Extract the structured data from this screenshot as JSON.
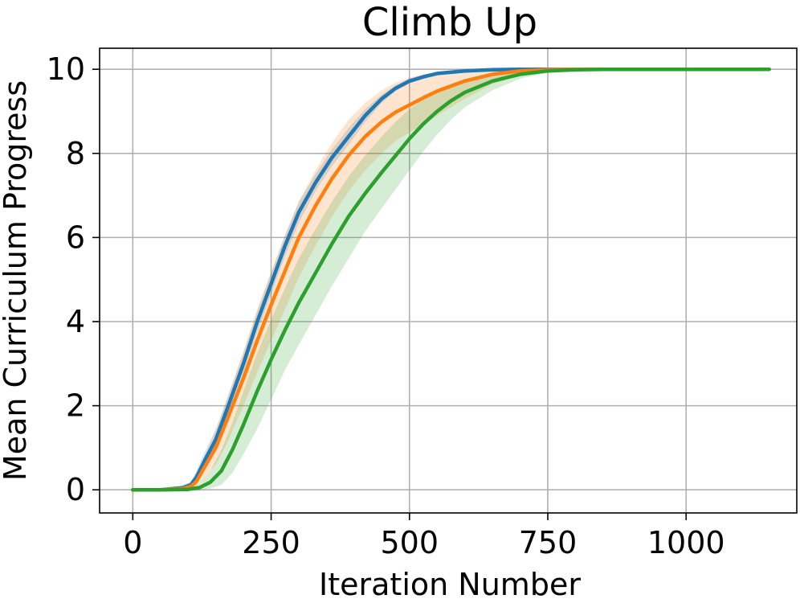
{
  "chart_data": {
    "type": "line",
    "title": "Climb Up",
    "xlabel": "Iteration Number",
    "ylabel": "Mean Curriculum Progress",
    "xlim": [
      -60,
      1200
    ],
    "ylim": [
      -0.55,
      10.5
    ],
    "xticks": [
      0,
      250,
      500,
      750,
      1000
    ],
    "yticks": [
      0,
      2,
      4,
      6,
      8,
      10
    ],
    "grid": true,
    "series": [
      {
        "color": "#1f77b4",
        "x": [
          0,
          50,
          90,
          105,
          115,
          130,
          150,
          170,
          200,
          225,
          250,
          275,
          300,
          330,
          360,
          390,
          420,
          450,
          475,
          500,
          525,
          550,
          600,
          650,
          700,
          750,
          800,
          850,
          900,
          1000,
          1150
        ],
        "y": [
          0,
          0,
          0.05,
          0.12,
          0.3,
          0.7,
          1.2,
          1.9,
          3.0,
          4.0,
          4.9,
          5.8,
          6.6,
          7.3,
          7.9,
          8.4,
          8.9,
          9.3,
          9.55,
          9.72,
          9.82,
          9.9,
          9.96,
          9.99,
          10,
          10,
          10,
          10,
          10,
          10,
          10
        ],
        "upper": [
          0,
          0,
          0.1,
          0.2,
          0.45,
          0.9,
          1.45,
          2.15,
          3.25,
          4.25,
          5.15,
          6.05,
          6.85,
          7.5,
          8.1,
          8.6,
          9.05,
          9.4,
          9.62,
          9.78,
          9.87,
          9.93,
          9.98,
          10,
          10,
          10,
          10,
          10,
          10,
          10,
          10
        ],
        "lower": [
          0,
          0,
          0.02,
          0.06,
          0.18,
          0.5,
          0.95,
          1.65,
          2.75,
          3.75,
          4.65,
          5.55,
          6.35,
          7.1,
          7.7,
          8.2,
          8.75,
          9.2,
          9.48,
          9.66,
          9.77,
          9.86,
          9.94,
          9.98,
          10,
          10,
          10,
          10,
          10,
          10,
          10
        ],
        "band_color": "#1f77b4"
      },
      {
        "color": "#ff7f0e",
        "x": [
          0,
          50,
          90,
          105,
          115,
          130,
          150,
          170,
          200,
          225,
          250,
          275,
          300,
          330,
          360,
          390,
          420,
          450,
          475,
          500,
          525,
          550,
          600,
          650,
          700,
          750,
          800,
          850,
          900,
          1000,
          1150
        ],
        "y": [
          0,
          0,
          0.03,
          0.08,
          0.2,
          0.55,
          1.0,
          1.65,
          2.65,
          3.55,
          4.4,
          5.2,
          6.0,
          6.75,
          7.4,
          7.95,
          8.4,
          8.75,
          8.98,
          9.15,
          9.32,
          9.48,
          9.72,
          9.88,
          9.96,
          9.99,
          10,
          10,
          10,
          10,
          10
        ],
        "upper": [
          0,
          0,
          0.08,
          0.15,
          0.35,
          0.8,
          1.4,
          2.15,
          3.3,
          4.3,
          5.2,
          6.05,
          6.85,
          7.6,
          8.25,
          8.8,
          9.2,
          9.5,
          9.68,
          9.8,
          9.88,
          9.93,
          9.98,
          10,
          10,
          10,
          10,
          10,
          10,
          10,
          10
        ],
        "lower": [
          0,
          0,
          0.01,
          0.03,
          0.08,
          0.3,
          0.6,
          1.1,
          2.0,
          2.8,
          3.55,
          4.3,
          5.05,
          5.8,
          6.5,
          7.1,
          7.6,
          8.0,
          8.3,
          8.5,
          8.7,
          8.9,
          9.3,
          9.65,
          9.85,
          9.95,
          10,
          10,
          10,
          10,
          10
        ],
        "band_color": "#ff7f0e"
      },
      {
        "color": "#2ca02c",
        "x": [
          0,
          50,
          100,
          120,
          140,
          160,
          180,
          200,
          225,
          250,
          275,
          300,
          330,
          360,
          390,
          420,
          450,
          475,
          500,
          525,
          550,
          575,
          600,
          650,
          700,
          750,
          800,
          850,
          900,
          1000,
          1150
        ],
        "y": [
          0,
          0,
          0.01,
          0.05,
          0.18,
          0.45,
          0.95,
          1.55,
          2.35,
          3.1,
          3.8,
          4.45,
          5.15,
          5.85,
          6.5,
          7.05,
          7.55,
          7.95,
          8.35,
          8.7,
          9.0,
          9.25,
          9.45,
          9.72,
          9.88,
          9.96,
          9.99,
          10,
          10,
          10,
          10
        ],
        "upper": [
          0,
          0,
          0.03,
          0.15,
          0.45,
          0.95,
          1.6,
          2.35,
          3.25,
          4.05,
          4.8,
          5.5,
          6.2,
          6.85,
          7.45,
          7.95,
          8.4,
          8.75,
          9.05,
          9.3,
          9.5,
          9.65,
          9.77,
          9.9,
          9.96,
          9.99,
          10,
          10,
          10,
          10,
          10
        ],
        "lower": [
          0,
          0,
          0,
          0.01,
          0.03,
          0.12,
          0.4,
          0.85,
          1.45,
          2.15,
          2.85,
          3.45,
          4.15,
          4.85,
          5.5,
          6.15,
          6.7,
          7.15,
          7.6,
          8.05,
          8.45,
          8.8,
          9.1,
          9.5,
          9.78,
          9.92,
          9.98,
          10,
          10,
          10,
          10
        ],
        "band_color": "#2ca02c"
      }
    ]
  }
}
